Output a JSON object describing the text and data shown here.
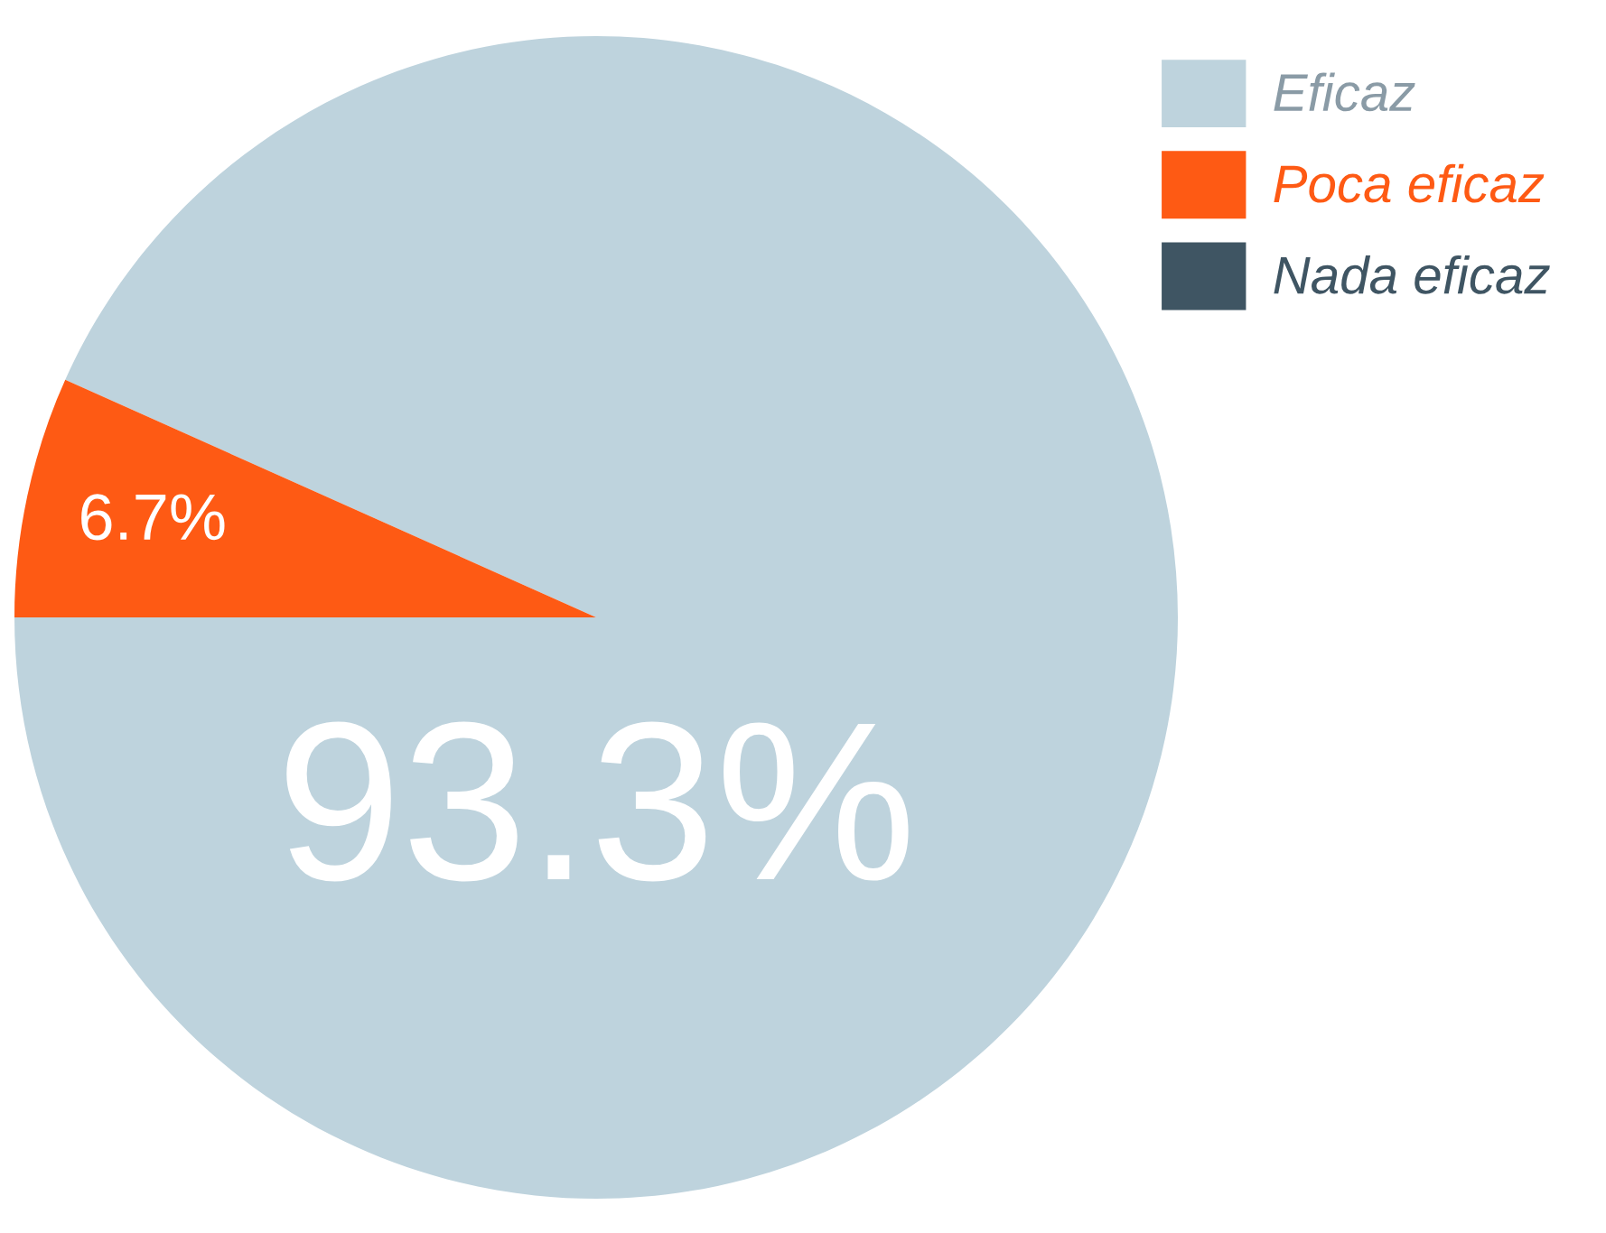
{
  "chart_data": {
    "type": "pie",
    "categories": [
      "Eficaz",
      "Poca eficaz",
      "Nada eficaz"
    ],
    "values": [
      93.3,
      6.7,
      0
    ],
    "colors": [
      "#bed3dd",
      "#fe5a14",
      "#3f5563"
    ],
    "value_labels": [
      "93.3%",
      "6.7%",
      null
    ],
    "legend": "top right"
  }
}
